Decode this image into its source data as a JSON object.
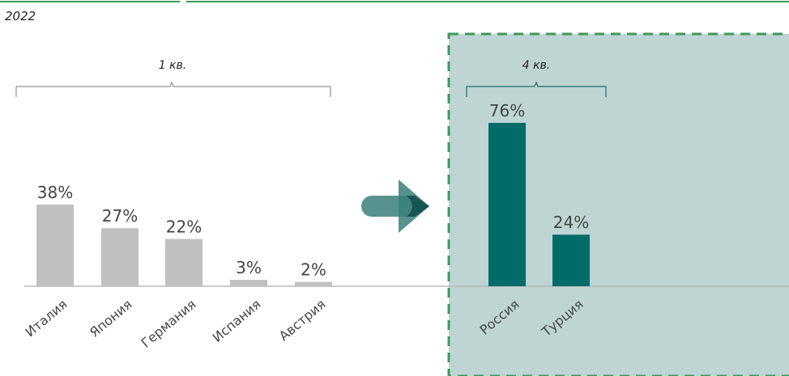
{
  "chart_data": {
    "type": "bar",
    "year": "2022",
    "groups": [
      {
        "name": "1 кв.",
        "categories": [
          "Италия",
          "Япония",
          "Германия",
          "Испания",
          "Австрия"
        ],
        "values": [
          38,
          27,
          22,
          3,
          2
        ],
        "labels": [
          "38%",
          "27%",
          "22%",
          "3%",
          "2%"
        ],
        "color": "#c0c0c0"
      },
      {
        "name": "4 кв.",
        "categories": [
          "Россия",
          "Турция"
        ],
        "values": [
          76,
          24
        ],
        "labels": [
          "76%",
          "24%"
        ],
        "color": "#006b69"
      }
    ],
    "ylim": [
      0,
      100
    ],
    "grid": false,
    "highlight_color": "#bed5d3",
    "highlight_border_color": "#3a9a5a",
    "arrow_color": "#3a7f7b"
  }
}
